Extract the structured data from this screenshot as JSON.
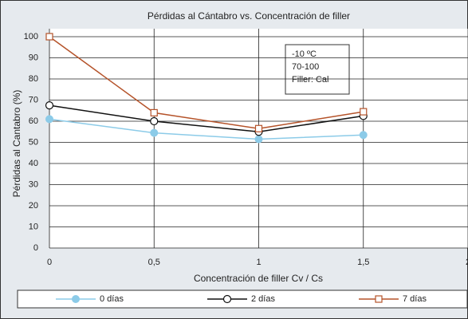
{
  "chart_data": {
    "type": "line",
    "title": "Pérdidas al Cántabro vs. Concentración de filler",
    "x_label": "Concentración de filler Cv / Cs",
    "y_label": "Pérdidas al Cantabro (%)",
    "x": [
      0,
      0.5,
      1,
      1.5
    ],
    "series": [
      {
        "name": "0 días",
        "color": "#8ccbe8",
        "marker": "filled-circle",
        "values": [
          61,
          54.5,
          51.5,
          53.5
        ]
      },
      {
        "name": "2 días",
        "color": "#111111",
        "marker": "open-circle",
        "values": [
          67.5,
          60,
          55,
          62.5
        ]
      },
      {
        "name": "7 días",
        "color": "#b5532a",
        "marker": "open-square",
        "values": [
          100,
          64,
          56.5,
          64.5
        ]
      }
    ],
    "annotations": [
      "-10 ºC",
      "70-100",
      "Filler: Cal"
    ],
    "xlim": [
      0,
      2
    ],
    "xticks": [
      0,
      {
        "value": 0.5,
        "label": "0,5"
      },
      1,
      {
        "value": 1.5,
        "label": "1,5"
      },
      2
    ],
    "ylim": [
      0,
      100
    ],
    "yticks": [
      0,
      10,
      20,
      30,
      40,
      50,
      60,
      70,
      80,
      90,
      100
    ],
    "grid": true,
    "legend": "bottom"
  }
}
